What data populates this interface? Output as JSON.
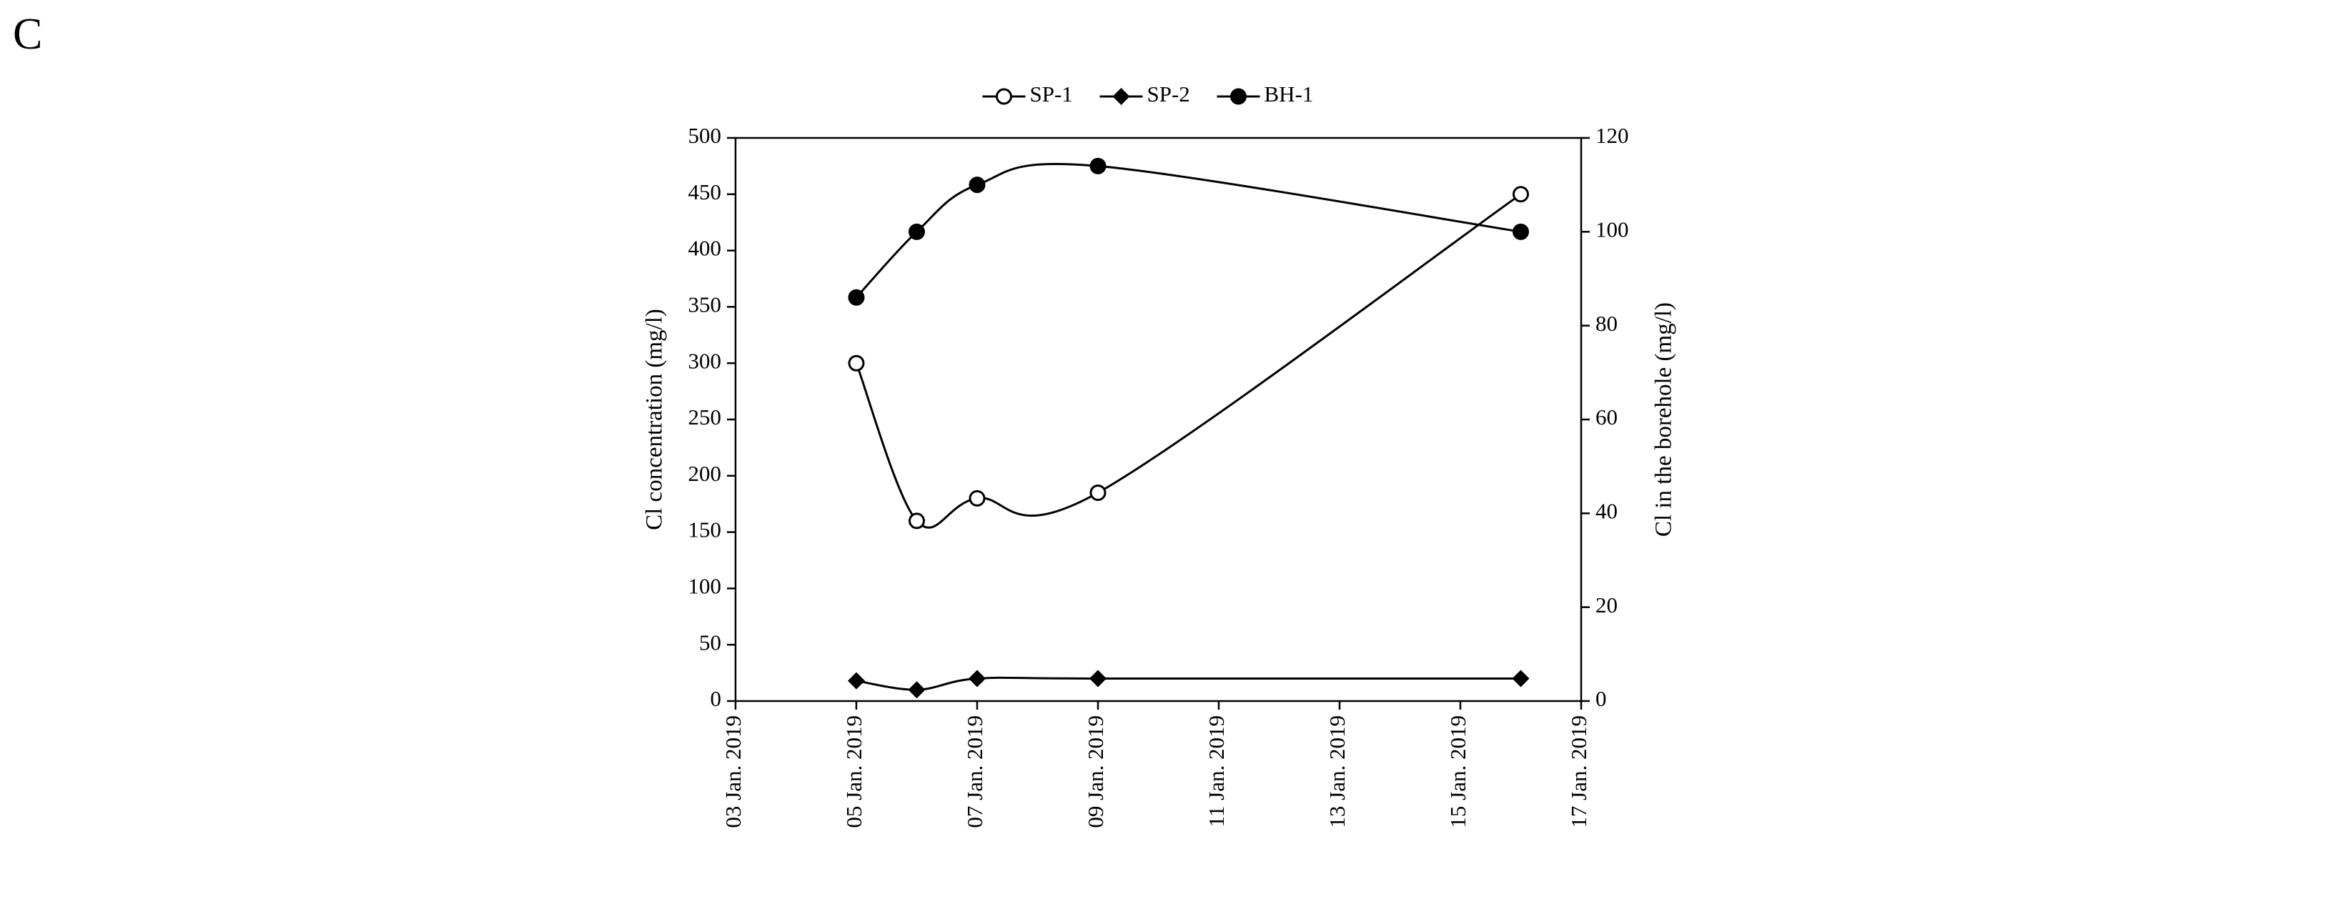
{
  "panel_label": "C",
  "chart_data": {
    "type": "line",
    "smooth": true,
    "y_label": "Cl concentration (mg/l)",
    "y2_label": "Cl in the borehole (mg/l)",
    "x": [
      "2019-01-05",
      "2019-01-06",
      "2019-01-07",
      "2019-01-09",
      "2019-01-16"
    ],
    "xlim": [
      "2019-01-03",
      "2019-01-17"
    ],
    "xticks": [
      {
        "value": "2019-01-03",
        "label": "03 Jan. 2019"
      },
      {
        "value": "2019-01-05",
        "label": "05 Jan. 2019"
      },
      {
        "value": "2019-01-07",
        "label": "07 Jan. 2019"
      },
      {
        "value": "2019-01-09",
        "label": "09 Jan. 2019"
      },
      {
        "value": "2019-01-11",
        "label": "11 Jan. 2019"
      },
      {
        "value": "2019-01-13",
        "label": "13 Jan. 2019"
      },
      {
        "value": "2019-01-15",
        "label": "15 Jan. 2019"
      },
      {
        "value": "2019-01-17",
        "label": "17 Jan. 2019"
      }
    ],
    "ylim": [
      0,
      500
    ],
    "yticks": [
      0,
      50,
      100,
      150,
      200,
      250,
      300,
      350,
      400,
      450,
      500
    ],
    "y2lim": [
      0,
      120
    ],
    "y2ticks": [
      0,
      20,
      40,
      60,
      80,
      100,
      120
    ],
    "legend": "top",
    "series": [
      {
        "name": "SP-1",
        "color": "#000000",
        "marker": "circle-open",
        "values": [
          300,
          160,
          180,
          185,
          450
        ]
      },
      {
        "name": "SP-2",
        "color": "#000000",
        "marker": "diamond",
        "values": [
          18,
          10,
          20,
          20,
          20
        ]
      },
      {
        "name": "BH-1",
        "color": "#000000",
        "marker": "circle",
        "axis": "y2",
        "values": [
          86,
          100,
          110,
          114,
          100
        ]
      }
    ]
  }
}
